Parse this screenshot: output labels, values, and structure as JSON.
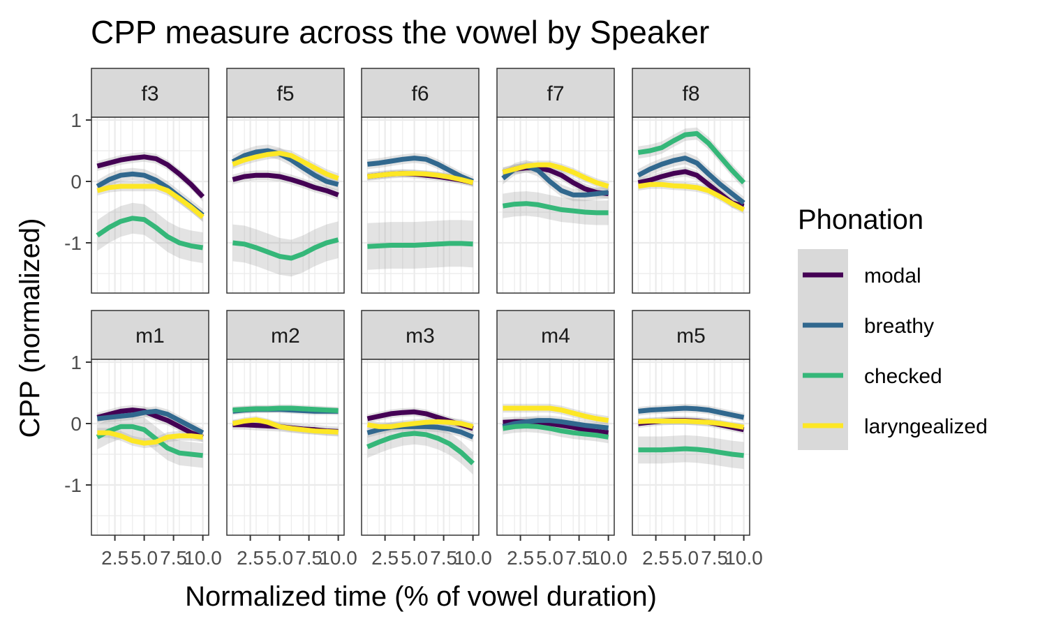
{
  "chart_data": {
    "type": "line",
    "title": "CPP measure across the vowel by Speaker",
    "xlabel": "Normalized time (% of vowel duration)",
    "ylabel": "CPP (normalized)",
    "xlim": [
      0.5,
      10.5
    ],
    "ylim": [
      -1.8,
      1.0
    ],
    "x_ticks": [
      2.5,
      5.0,
      7.5,
      10.0
    ],
    "x_tick_labels": [
      "2.5",
      "5.0",
      "7.5",
      "10.0"
    ],
    "y_ticks": [
      1,
      0,
      -1
    ],
    "y_tick_labels": [
      "1",
      "0",
      "-1"
    ],
    "grid": true,
    "legend": {
      "title": "Phonation",
      "position": "right",
      "entries": [
        "modal",
        "breathy",
        "checked",
        "laryngealized"
      ]
    },
    "colors": {
      "modal": "#440154",
      "breathy": "#31688e",
      "checked": "#35b779",
      "laryngealized": "#fde725",
      "strip_bg": "#d9d9d9",
      "ribbon": "#999999"
    },
    "x": [
      1,
      2,
      3,
      4,
      5,
      6,
      7,
      8,
      9,
      10
    ],
    "panels": [
      {
        "label": "f3",
        "series": [
          {
            "name": "modal",
            "values": [
              0.25,
              0.3,
              0.35,
              0.38,
              0.4,
              0.37,
              0.27,
              0.12,
              -0.05,
              -0.25
            ],
            "band": 0.08
          },
          {
            "name": "breathy",
            "values": [
              -0.08,
              0.03,
              0.1,
              0.12,
              0.1,
              0.02,
              -0.1,
              -0.25,
              -0.4,
              -0.55
            ],
            "band": 0.1
          },
          {
            "name": "checked",
            "values": [
              -0.88,
              -0.75,
              -0.65,
              -0.6,
              -0.62,
              -0.75,
              -0.9,
              -1.0,
              -1.05,
              -1.08
            ],
            "band": 0.25
          },
          {
            "name": "laryngealized",
            "values": [
              -0.15,
              -0.1,
              -0.08,
              -0.08,
              -0.08,
              -0.08,
              -0.15,
              -0.28,
              -0.42,
              -0.58
            ],
            "band": 0.08
          }
        ]
      },
      {
        "label": "f5",
        "series": [
          {
            "name": "modal",
            "values": [
              0.03,
              0.08,
              0.1,
              0.1,
              0.08,
              0.03,
              -0.03,
              -0.1,
              -0.15,
              -0.22
            ],
            "band": 0.08
          },
          {
            "name": "breathy",
            "values": [
              0.32,
              0.42,
              0.48,
              0.5,
              0.45,
              0.35,
              0.22,
              0.1,
              0.0,
              -0.05
            ],
            "band": 0.1
          },
          {
            "name": "checked",
            "values": [
              -1.0,
              -1.02,
              -1.08,
              -1.15,
              -1.22,
              -1.25,
              -1.18,
              -1.08,
              -1.0,
              -0.95
            ],
            "band": 0.3
          },
          {
            "name": "laryngealized",
            "values": [
              0.28,
              0.35,
              0.4,
              0.44,
              0.46,
              0.42,
              0.32,
              0.22,
              0.12,
              0.05
            ],
            "band": 0.08
          }
        ]
      },
      {
        "label": "f6",
        "series": [
          {
            "name": "modal",
            "values": [
              0.08,
              0.1,
              0.12,
              0.13,
              0.12,
              0.1,
              0.08,
              0.05,
              0.02,
              -0.02
            ],
            "band": 0.07
          },
          {
            "name": "breathy",
            "values": [
              0.28,
              0.3,
              0.33,
              0.36,
              0.38,
              0.36,
              0.28,
              0.18,
              0.08,
              0.0
            ],
            "band": 0.08
          },
          {
            "name": "checked",
            "values": [
              -1.06,
              -1.05,
              -1.04,
              -1.04,
              -1.04,
              -1.03,
              -1.02,
              -1.01,
              -1.01,
              -1.02
            ],
            "band": 0.38
          },
          {
            "name": "laryngealized",
            "values": [
              0.08,
              0.1,
              0.12,
              0.13,
              0.13,
              0.12,
              0.1,
              0.07,
              0.03,
              -0.02
            ],
            "band": 0.06
          }
        ]
      },
      {
        "label": "f7",
        "series": [
          {
            "name": "modal",
            "values": [
              0.15,
              0.2,
              0.22,
              0.22,
              0.18,
              0.1,
              -0.02,
              -0.12,
              -0.18,
              -0.2
            ],
            "band": 0.08
          },
          {
            "name": "breathy",
            "values": [
              0.05,
              0.2,
              0.25,
              0.18,
              0.0,
              -0.15,
              -0.22,
              -0.22,
              -0.2,
              -0.18
            ],
            "band": 0.1
          },
          {
            "name": "checked",
            "values": [
              -0.4,
              -0.37,
              -0.36,
              -0.38,
              -0.42,
              -0.46,
              -0.48,
              -0.5,
              -0.51,
              -0.51
            ],
            "band": 0.2
          },
          {
            "name": "laryngealized",
            "values": [
              0.15,
              0.2,
              0.25,
              0.27,
              0.27,
              0.22,
              0.15,
              0.06,
              -0.02,
              -0.08
            ],
            "band": 0.07
          }
        ]
      },
      {
        "label": "f8",
        "series": [
          {
            "name": "modal",
            "values": [
              -0.02,
              0.02,
              0.08,
              0.13,
              0.16,
              0.1,
              -0.05,
              -0.2,
              -0.35,
              -0.4
            ],
            "band": 0.08
          },
          {
            "name": "breathy",
            "values": [
              0.1,
              0.2,
              0.28,
              0.34,
              0.38,
              0.3,
              0.12,
              -0.05,
              -0.2,
              -0.35
            ],
            "band": 0.1
          },
          {
            "name": "checked",
            "values": [
              0.47,
              0.5,
              0.55,
              0.66,
              0.76,
              0.78,
              0.62,
              0.4,
              0.18,
              -0.02
            ],
            "band": 0.1
          },
          {
            "name": "laryngealized",
            "values": [
              -0.08,
              -0.05,
              -0.05,
              -0.07,
              -0.08,
              -0.1,
              -0.15,
              -0.25,
              -0.36,
              -0.46
            ],
            "band": 0.07
          }
        ]
      },
      {
        "label": "m1",
        "series": [
          {
            "name": "modal",
            "values": [
              0.1,
              0.15,
              0.2,
              0.22,
              0.2,
              0.12,
              0.05,
              -0.05,
              -0.15,
              -0.22
            ],
            "band": 0.08
          },
          {
            "name": "breathy",
            "values": [
              0.08,
              0.1,
              0.12,
              0.14,
              0.18,
              0.2,
              0.15,
              0.05,
              -0.05,
              -0.15
            ],
            "band": 0.08
          },
          {
            "name": "checked",
            "values": [
              -0.22,
              -0.12,
              -0.05,
              -0.05,
              -0.1,
              -0.25,
              -0.4,
              -0.48,
              -0.5,
              -0.52
            ],
            "band": 0.2
          },
          {
            "name": "laryngealized",
            "values": [
              -0.15,
              -0.15,
              -0.2,
              -0.28,
              -0.32,
              -0.3,
              -0.22,
              -0.2,
              -0.2,
              -0.22
            ],
            "band": 0.08
          }
        ]
      },
      {
        "label": "m2",
        "series": [
          {
            "name": "modal",
            "values": [
              -0.02,
              -0.02,
              -0.03,
              -0.04,
              -0.05,
              -0.07,
              -0.09,
              -0.1,
              -0.12,
              -0.13
            ],
            "band": 0.08
          },
          {
            "name": "breathy",
            "values": [
              0.2,
              0.22,
              0.23,
              0.23,
              0.23,
              0.22,
              0.21,
              0.2,
              0.2,
              0.2
            ],
            "band": 0.06
          },
          {
            "name": "checked",
            "values": [
              0.22,
              0.23,
              0.24,
              0.24,
              0.25,
              0.25,
              0.24,
              0.23,
              0.22,
              0.21
            ],
            "band": 0.06
          },
          {
            "name": "laryngealized",
            "values": [
              0.0,
              0.04,
              0.06,
              0.02,
              -0.05,
              -0.08,
              -0.1,
              -0.12,
              -0.13,
              -0.14
            ],
            "band": 0.06
          }
        ]
      },
      {
        "label": "m3",
        "series": [
          {
            "name": "modal",
            "values": [
              0.08,
              0.12,
              0.16,
              0.18,
              0.19,
              0.16,
              0.1,
              0.04,
              -0.02,
              -0.08
            ],
            "band": 0.07
          },
          {
            "name": "breathy",
            "values": [
              -0.15,
              -0.1,
              -0.06,
              -0.05,
              -0.05,
              -0.05,
              -0.06,
              -0.09,
              -0.14,
              -0.22
            ],
            "band": 0.08
          },
          {
            "name": "checked",
            "values": [
              -0.38,
              -0.3,
              -0.23,
              -0.18,
              -0.16,
              -0.18,
              -0.24,
              -0.33,
              -0.47,
              -0.65
            ],
            "band": 0.18
          },
          {
            "name": "laryngealized",
            "values": [
              -0.02,
              -0.05,
              -0.05,
              -0.02,
              0.0,
              0.02,
              0.03,
              0.02,
              0.0,
              -0.05
            ],
            "band": 0.07
          }
        ]
      },
      {
        "label": "m4",
        "series": [
          {
            "name": "modal",
            "values": [
              0.02,
              0.03,
              0.03,
              0.02,
              0.0,
              -0.03,
              -0.06,
              -0.1,
              -0.13,
              -0.15
            ],
            "band": 0.08
          },
          {
            "name": "breathy",
            "values": [
              -0.05,
              0.0,
              0.03,
              0.05,
              0.05,
              0.03,
              0.0,
              -0.03,
              -0.05,
              -0.07
            ],
            "band": 0.08
          },
          {
            "name": "checked",
            "values": [
              -0.08,
              -0.05,
              -0.04,
              -0.05,
              -0.08,
              -0.12,
              -0.15,
              -0.17,
              -0.19,
              -0.22
            ],
            "band": 0.1
          },
          {
            "name": "laryngealized",
            "values": [
              0.25,
              0.25,
              0.25,
              0.25,
              0.25,
              0.22,
              0.17,
              0.12,
              0.08,
              0.05
            ],
            "band": 0.07
          }
        ]
      },
      {
        "label": "m5",
        "series": [
          {
            "name": "modal",
            "values": [
              0.0,
              0.02,
              0.04,
              0.05,
              0.05,
              0.04,
              0.02,
              -0.02,
              -0.06,
              -0.1
            ],
            "band": 0.07
          },
          {
            "name": "breathy",
            "values": [
              0.2,
              0.22,
              0.23,
              0.24,
              0.25,
              0.24,
              0.22,
              0.18,
              0.14,
              0.1
            ],
            "band": 0.07
          },
          {
            "name": "checked",
            "values": [
              -0.43,
              -0.43,
              -0.43,
              -0.42,
              -0.41,
              -0.42,
              -0.44,
              -0.47,
              -0.5,
              -0.52
            ],
            "band": 0.22
          },
          {
            "name": "laryngealized",
            "values": [
              0.03,
              0.04,
              0.04,
              0.04,
              0.04,
              0.03,
              0.02,
              0.0,
              -0.03,
              -0.06
            ],
            "band": 0.06
          }
        ]
      }
    ]
  }
}
